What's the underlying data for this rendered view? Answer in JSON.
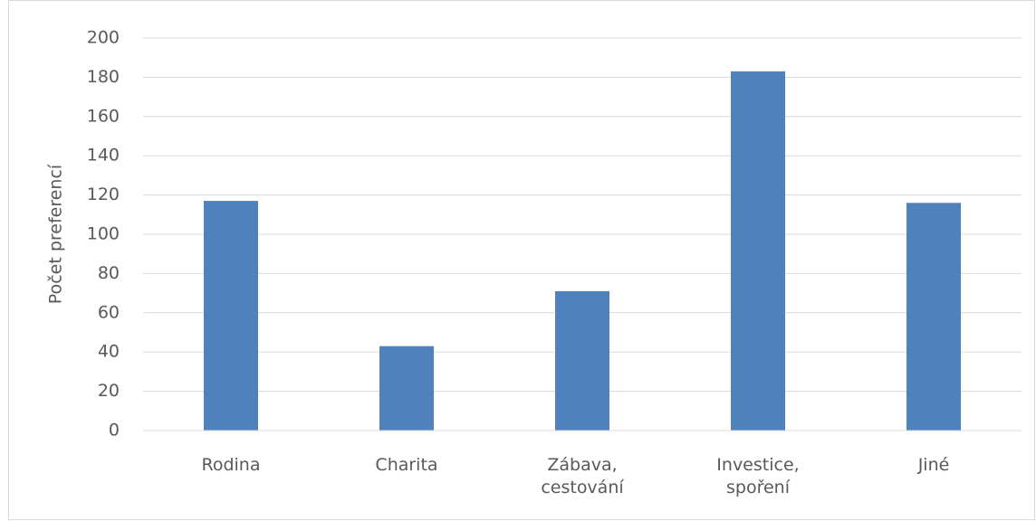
{
  "chart_data": {
    "type": "bar",
    "y_label": "Počet preferencí",
    "categories": [
      "Rodina",
      "Charita",
      "Zábava, cestování",
      "Investice, spoření",
      "Jiné"
    ],
    "values": [
      117,
      43,
      71,
      183,
      116
    ],
    "color": "#4f81bd",
    "ylim": [
      0,
      200
    ],
    "yticks": [
      0,
      20,
      40,
      60,
      80,
      100,
      120,
      140,
      160,
      180,
      200
    ],
    "grid": true
  }
}
